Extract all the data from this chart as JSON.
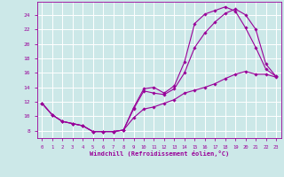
{
  "xlabel": "Windchill (Refroidissement éolien,°C)",
  "background_color": "#cce8e8",
  "grid_color": "#ffffff",
  "line_color": "#990099",
  "xlim": [
    -0.5,
    23.5
  ],
  "ylim": [
    7.0,
    25.8
  ],
  "xticks": [
    0,
    1,
    2,
    3,
    4,
    5,
    6,
    7,
    8,
    9,
    10,
    11,
    12,
    13,
    14,
    15,
    16,
    17,
    18,
    19,
    20,
    21,
    22,
    23
  ],
  "yticks": [
    8,
    10,
    12,
    14,
    16,
    18,
    20,
    22,
    24
  ],
  "curve1_x": [
    0,
    1,
    2,
    3,
    4,
    5,
    6,
    7,
    8,
    9,
    10,
    11,
    12,
    13,
    14,
    15,
    16,
    17,
    18,
    19,
    20,
    21,
    22,
    23
  ],
  "curve1_y": [
    11.8,
    10.2,
    9.3,
    9.0,
    8.7,
    7.9,
    7.9,
    7.9,
    8.1,
    11.2,
    13.8,
    14.0,
    13.2,
    14.2,
    17.5,
    22.8,
    24.1,
    24.6,
    25.1,
    24.5,
    22.2,
    19.5,
    16.5,
    15.5
  ],
  "curve2_x": [
    0,
    1,
    2,
    3,
    4,
    5,
    6,
    7,
    8,
    9,
    10,
    11,
    12,
    13,
    14,
    15,
    16,
    17,
    18,
    19,
    20,
    21,
    22,
    23
  ],
  "curve2_y": [
    11.8,
    10.2,
    9.3,
    9.0,
    8.7,
    7.9,
    7.9,
    7.9,
    8.1,
    11.0,
    13.5,
    13.2,
    13.0,
    13.8,
    16.0,
    19.5,
    21.5,
    23.0,
    24.2,
    24.8,
    24.0,
    22.0,
    17.2,
    15.5
  ],
  "curve3_x": [
    0,
    1,
    2,
    3,
    4,
    5,
    6,
    7,
    8,
    9,
    10,
    11,
    12,
    13,
    14,
    15,
    16,
    17,
    18,
    19,
    20,
    21,
    22,
    23
  ],
  "curve3_y": [
    11.8,
    10.2,
    9.3,
    9.0,
    8.7,
    7.9,
    7.9,
    7.9,
    8.1,
    9.8,
    11.0,
    11.3,
    11.8,
    12.3,
    13.2,
    13.6,
    14.0,
    14.5,
    15.2,
    15.8,
    16.2,
    15.8,
    15.8,
    15.4
  ]
}
